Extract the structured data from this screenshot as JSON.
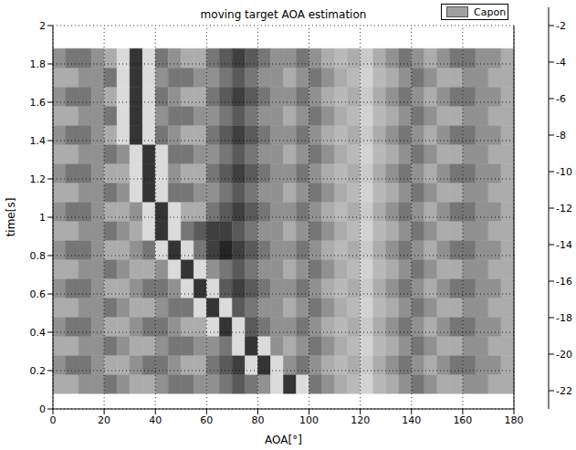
{
  "chart_data": {
    "type": "heatmap",
    "title": "moving target AOA estimation",
    "xlabel": "AOA[°]",
    "ylabel": "time[s]",
    "name": "Capon",
    "color": "#a0a0a0",
    "legend": "top-right",
    "grid": true,
    "xlim": [
      0,
      180
    ],
    "xticks": [
      0,
      20,
      40,
      60,
      80,
      100,
      120,
      140,
      160,
      180
    ],
    "ylim": [
      0,
      2
    ],
    "yticks": [
      0,
      0.2,
      0.4,
      0.6,
      0.8,
      1,
      1.2,
      1.4,
      1.6,
      1.8,
      2
    ],
    "x_edges": [
      0,
      5,
      10,
      15,
      20,
      25,
      30,
      35,
      40,
      45,
      50,
      55,
      60,
      65,
      70,
      75,
      80,
      85,
      90,
      95,
      100,
      105,
      110,
      115,
      120,
      125,
      130,
      135,
      140,
      145,
      150,
      155,
      160,
      165,
      170,
      175,
      180
    ],
    "y_edges": [
      0.08,
      0.18,
      0.28,
      0.38,
      0.48,
      0.58,
      0.68,
      0.78,
      0.88,
      0.98,
      1.08,
      1.18,
      1.28,
      1.38,
      1.48,
      1.58,
      1.68,
      1.78,
      1.88
    ],
    "cells": [
      [
        -15,
        -15,
        -16,
        -16,
        -17,
        -16,
        -15,
        -15,
        -16,
        -17,
        -17,
        -16,
        -16,
        -17,
        -18,
        -17,
        -16,
        -9,
        -2,
        -9,
        -17,
        -16,
        -15,
        -14,
        -11,
        -14,
        -15,
        -16,
        -17,
        -16,
        -15,
        -15,
        -16,
        -16,
        -15,
        -15
      ],
      [
        -16,
        -17,
        -17,
        -16,
        -15,
        -15,
        -16,
        -17,
        -17,
        -16,
        -15,
        -15,
        -17,
        -18,
        -19,
        -9,
        -2,
        -9,
        -16,
        -17,
        -16,
        -15,
        -14,
        -15,
        -12,
        -15,
        -16,
        -17,
        -16,
        -15,
        -16,
        -17,
        -17,
        -16,
        -16,
        -15
      ],
      [
        -15,
        -15,
        -16,
        -16,
        -17,
        -16,
        -15,
        -15,
        -16,
        -17,
        -17,
        -16,
        -16,
        -17,
        -9,
        -2,
        -9,
        -16,
        -15,
        -16,
        -17,
        -16,
        -15,
        -14,
        -11,
        -14,
        -15,
        -16,
        -17,
        -16,
        -15,
        -15,
        -16,
        -16,
        -15,
        -15
      ],
      [
        -16,
        -17,
        -17,
        -16,
        -15,
        -15,
        -16,
        -17,
        -17,
        -16,
        -15,
        -15,
        -9,
        -2,
        -9,
        -18,
        -17,
        -16,
        -16,
        -17,
        -16,
        -15,
        -14,
        -15,
        -12,
        -15,
        -16,
        -17,
        -16,
        -15,
        -16,
        -17,
        -17,
        -16,
        -16,
        -15
      ],
      [
        -15,
        -15,
        -16,
        -16,
        -17,
        -16,
        -15,
        -15,
        -16,
        -17,
        -17,
        -9,
        -2,
        -9,
        -18,
        -17,
        -16,
        -16,
        -15,
        -16,
        -17,
        -16,
        -15,
        -14,
        -11,
        -14,
        -15,
        -16,
        -17,
        -16,
        -15,
        -15,
        -16,
        -16,
        -15,
        -15
      ],
      [
        -16,
        -17,
        -17,
        -16,
        -15,
        -15,
        -16,
        -17,
        -17,
        -16,
        -9,
        -2,
        -9,
        -18,
        -19,
        -18,
        -17,
        -16,
        -16,
        -17,
        -16,
        -15,
        -14,
        -15,
        -12,
        -15,
        -16,
        -17,
        -16,
        -15,
        -16,
        -17,
        -17,
        -16,
        -16,
        -15
      ],
      [
        -15,
        -15,
        -16,
        -16,
        -17,
        -16,
        -15,
        -15,
        -16,
        -9,
        -2,
        -9,
        -16,
        -17,
        -18,
        -17,
        -16,
        -16,
        -15,
        -16,
        -17,
        -16,
        -15,
        -14,
        -11,
        -14,
        -15,
        -16,
        -17,
        -16,
        -15,
        -15,
        -16,
        -16,
        -15,
        -15
      ],
      [
        -16,
        -17,
        -17,
        -16,
        -15,
        -15,
        -16,
        -17,
        -9,
        -2,
        -9,
        -17,
        -19,
        -20,
        -19,
        -18,
        -17,
        -16,
        -16,
        -17,
        -16,
        -15,
        -14,
        -15,
        -12,
        -15,
        -16,
        -17,
        -16,
        -15,
        -16,
        -17,
        -17,
        -16,
        -16,
        -15
      ],
      [
        -15,
        -15,
        -16,
        -16,
        -17,
        -16,
        -15,
        -9,
        -2,
        -9,
        -17,
        -18,
        -19,
        -19,
        -18,
        -17,
        -16,
        -16,
        -15,
        -16,
        -17,
        -16,
        -15,
        -14,
        -11,
        -14,
        -15,
        -16,
        -17,
        -16,
        -15,
        -15,
        -16,
        -16,
        -15,
        -15
      ],
      [
        -16,
        -17,
        -17,
        -16,
        -15,
        -15,
        -16,
        -9,
        -2,
        -9,
        -15,
        -15,
        -17,
        -18,
        -19,
        -18,
        -17,
        -16,
        -16,
        -17,
        -16,
        -15,
        -14,
        -15,
        -12,
        -15,
        -16,
        -17,
        -16,
        -15,
        -16,
        -17,
        -17,
        -16,
        -16,
        -15
      ],
      [
        -15,
        -15,
        -16,
        -16,
        -17,
        -16,
        -9,
        -2,
        -9,
        -17,
        -17,
        -16,
        -16,
        -17,
        -18,
        -17,
        -16,
        -16,
        -15,
        -16,
        -17,
        -16,
        -15,
        -14,
        -11,
        -14,
        -15,
        -16,
        -17,
        -16,
        -15,
        -15,
        -16,
        -16,
        -15,
        -15
      ],
      [
        -16,
        -17,
        -17,
        -16,
        -15,
        -15,
        -9,
        -2,
        -9,
        -16,
        -15,
        -15,
        -17,
        -18,
        -19,
        -18,
        -17,
        -16,
        -16,
        -17,
        -16,
        -15,
        -14,
        -15,
        -12,
        -15,
        -16,
        -17,
        -16,
        -15,
        -16,
        -17,
        -17,
        -16,
        -16,
        -15
      ],
      [
        -15,
        -15,
        -16,
        -16,
        -17,
        -16,
        -9,
        -2,
        -9,
        -17,
        -17,
        -16,
        -16,
        -17,
        -18,
        -17,
        -16,
        -16,
        -15,
        -16,
        -17,
        -16,
        -15,
        -14,
        -11,
        -14,
        -15,
        -16,
        -17,
        -16,
        -15,
        -15,
        -16,
        -16,
        -15,
        -15
      ],
      [
        -16,
        -17,
        -17,
        -16,
        -15,
        -9,
        -2,
        -9,
        -17,
        -16,
        -15,
        -15,
        -17,
        -18,
        -19,
        -18,
        -17,
        -16,
        -16,
        -17,
        -16,
        -15,
        -14,
        -15,
        -12,
        -15,
        -16,
        -17,
        -16,
        -15,
        -16,
        -17,
        -17,
        -16,
        -16,
        -15
      ],
      [
        -15,
        -15,
        -16,
        -16,
        -17,
        -9,
        -2,
        -9,
        -16,
        -17,
        -17,
        -16,
        -16,
        -17,
        -18,
        -17,
        -16,
        -16,
        -15,
        -16,
        -17,
        -16,
        -15,
        -14,
        -11,
        -14,
        -15,
        -16,
        -17,
        -16,
        -15,
        -15,
        -16,
        -16,
        -15,
        -15
      ],
      [
        -16,
        -17,
        -17,
        -16,
        -15,
        -9,
        -2,
        -9,
        -17,
        -16,
        -15,
        -15,
        -17,
        -18,
        -19,
        -18,
        -17,
        -16,
        -16,
        -17,
        -16,
        -15,
        -14,
        -15,
        -12,
        -15,
        -16,
        -17,
        -16,
        -15,
        -16,
        -17,
        -17,
        -16,
        -16,
        -15
      ],
      [
        -15,
        -15,
        -16,
        -16,
        -17,
        -9,
        -2,
        -9,
        -16,
        -17,
        -17,
        -16,
        -16,
        -17,
        -18,
        -17,
        -16,
        -16,
        -15,
        -16,
        -17,
        -16,
        -15,
        -14,
        -11,
        -14,
        -15,
        -16,
        -17,
        -16,
        -15,
        -15,
        -16,
        -16,
        -15,
        -15
      ],
      [
        -16,
        -17,
        -17,
        -16,
        -15,
        -9,
        -2,
        -9,
        -17,
        -16,
        -15,
        -15,
        -17,
        -18,
        -19,
        -18,
        -17,
        -16,
        -16,
        -17,
        -16,
        -15,
        -14,
        -15,
        -12,
        -15,
        -16,
        -17,
        -16,
        -15,
        -16,
        -17,
        -17,
        -16,
        -16,
        -15
      ]
    ],
    "colorbar_lim": [
      -23,
      -1
    ],
    "colorbar_ticks": [
      -2,
      -4,
      -6,
      -8,
      -10,
      -12,
      -14,
      -16,
      -18,
      -20,
      -22
    ]
  }
}
